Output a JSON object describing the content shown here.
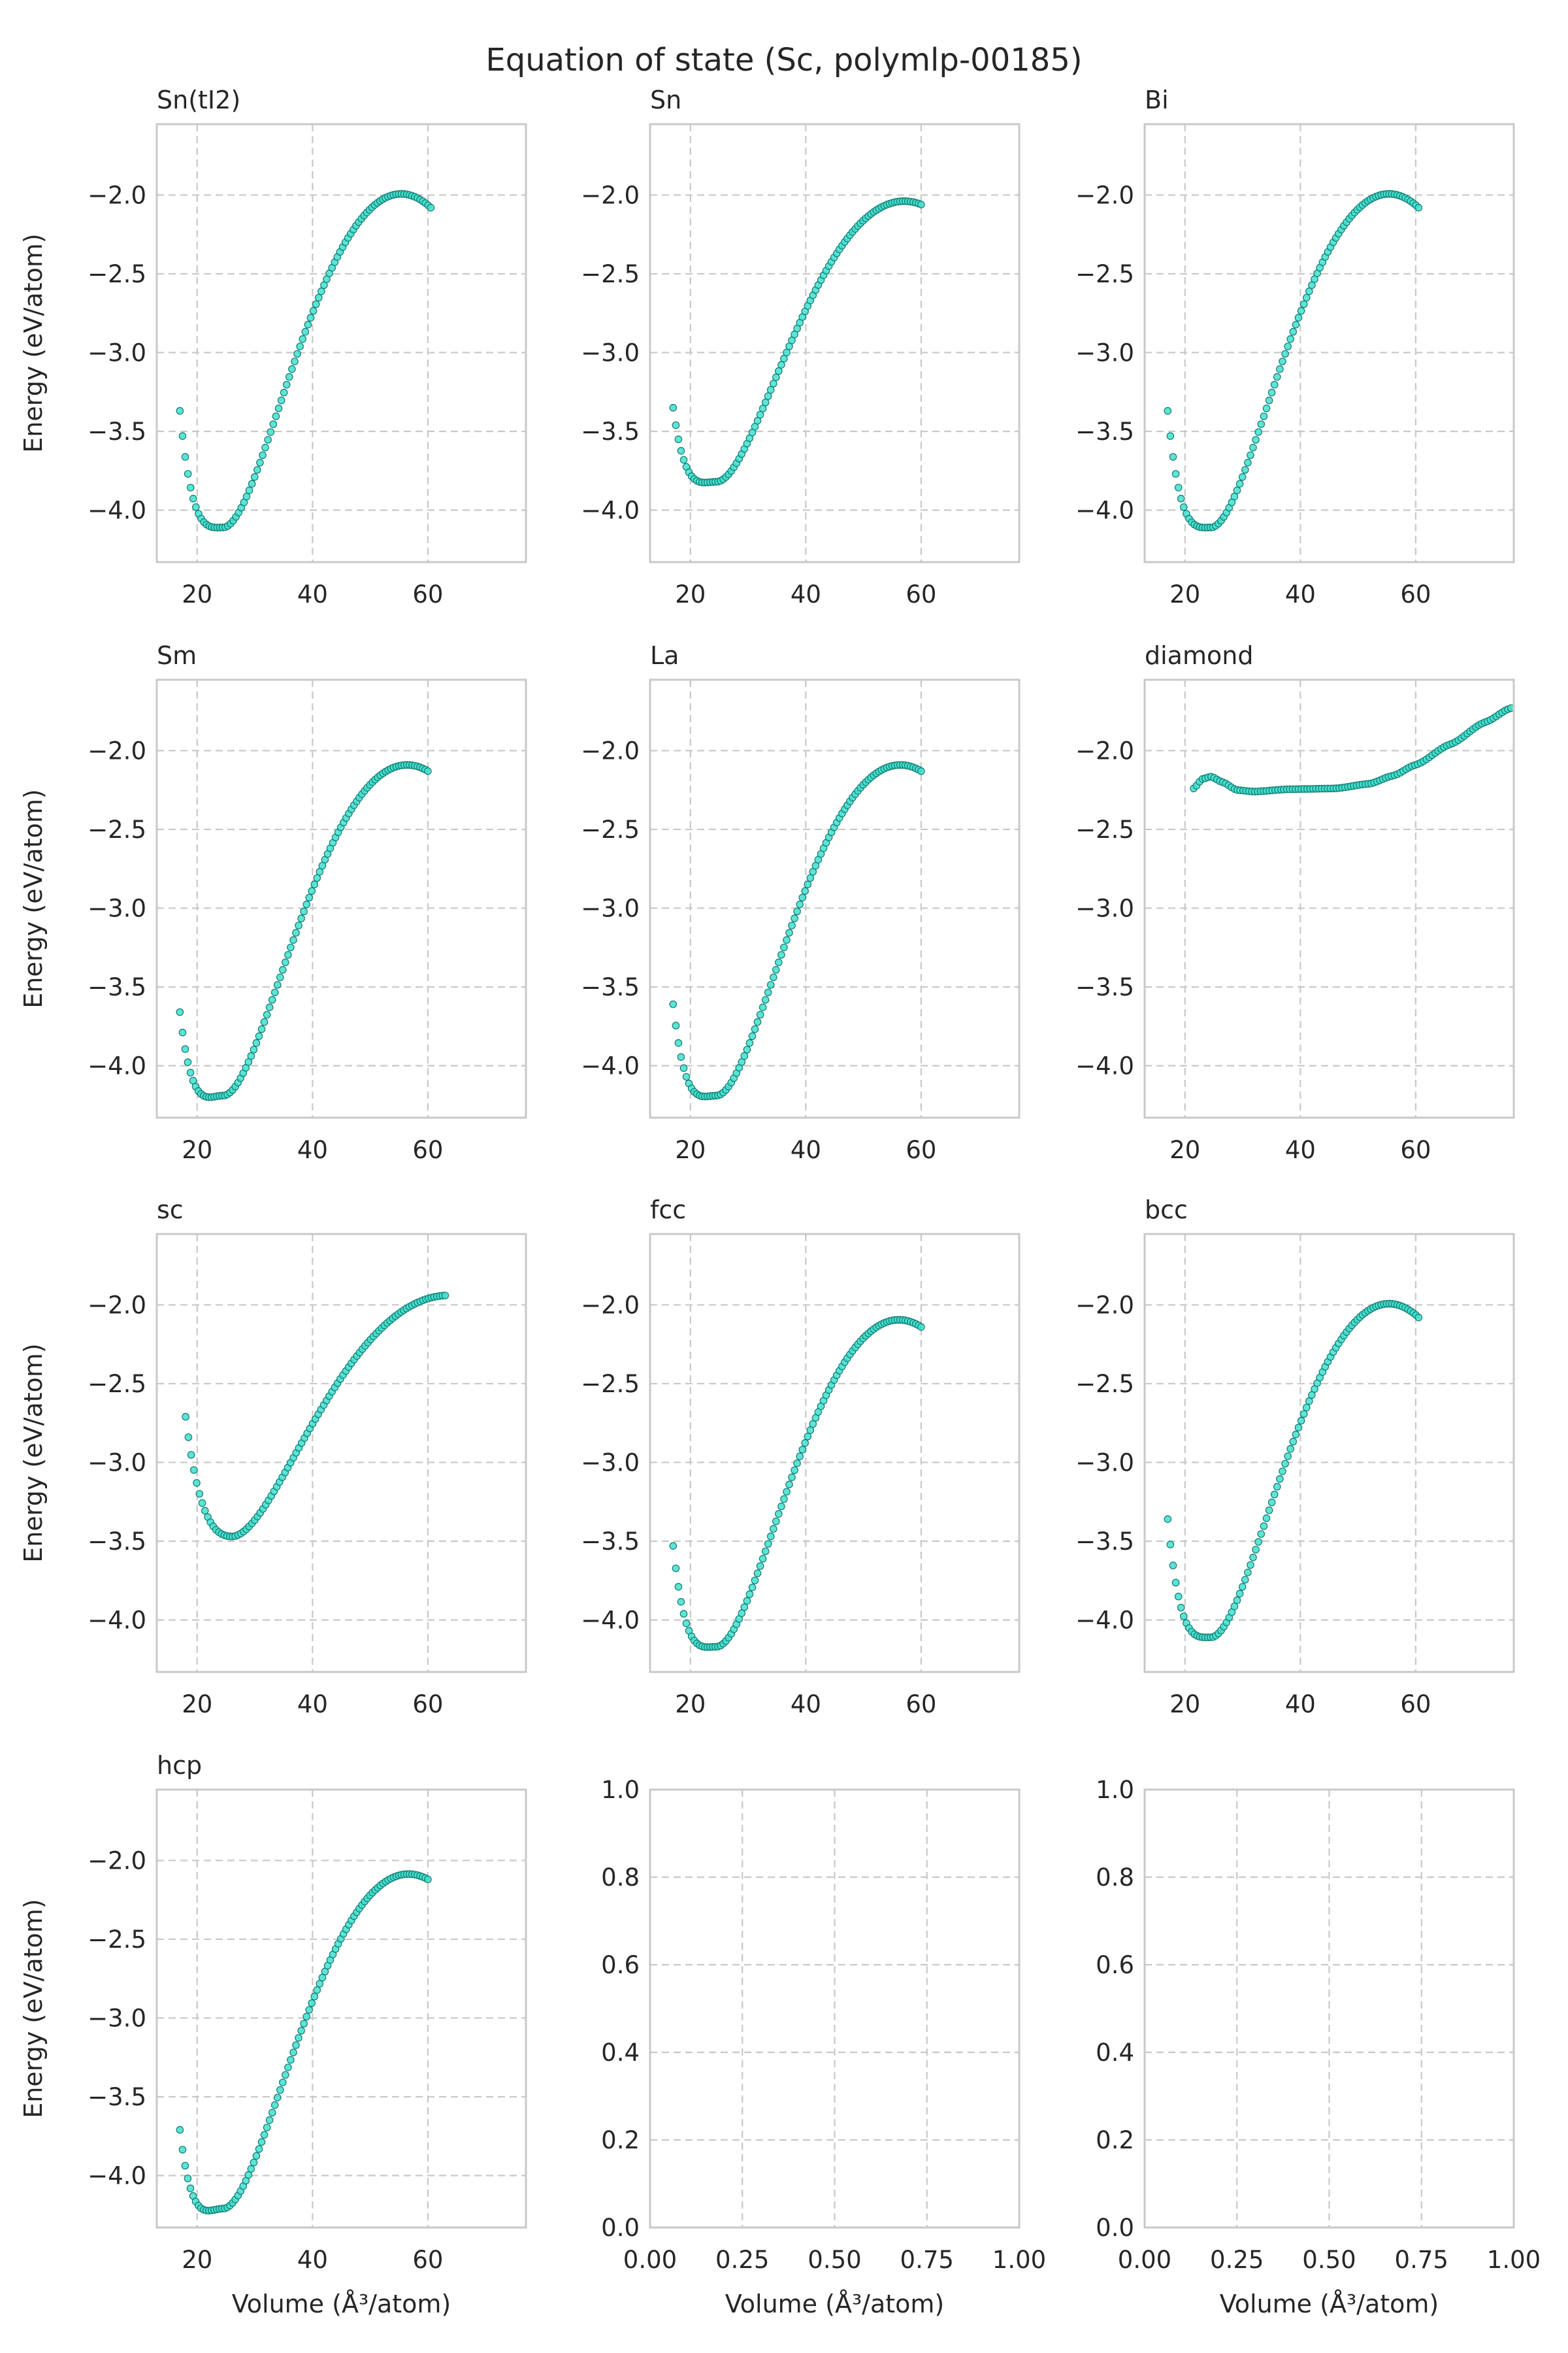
{
  "title": "Equation of state (Sc, polymlp-00185)",
  "colors": {
    "marker_fill": "#40e0d0",
    "marker_edge": "#127a6e",
    "grid": "#c8c8c8",
    "text": "#262626"
  },
  "chart_data": [
    {
      "type": "scatter",
      "title": "Sn(tI2)",
      "xlabel": "",
      "ylabel": "Energy (eV/atom)",
      "xlim": [
        13,
        77
      ],
      "ylim": [
        -4.33,
        -1.55
      ],
      "xticks": [
        "20",
        "40",
        "60"
      ],
      "yticks": [
        "−2.0",
        "−2.5",
        "−3.0",
        "−3.5",
        "−4.0"
      ],
      "grid": true,
      "curve": {
        "v_start": 17,
        "v_end": 60.5,
        "e0": -4.11,
        "v0": 24.5,
        "b": 0.9,
        "b1": 4.0,
        "n": 95
      },
      "first_point": [
        17.0,
        -3.37
      ],
      "min_point": [
        24.5,
        -4.11
      ],
      "last_point": [
        60.5,
        -2.08
      ]
    },
    {
      "type": "scatter",
      "title": "Sn",
      "xlabel": "",
      "ylabel": "",
      "xlim": [
        13,
        77
      ],
      "ylim": [
        -4.33,
        -1.55
      ],
      "xticks": [
        "20",
        "40",
        "60"
      ],
      "yticks": [
        "−2.0",
        "−2.5",
        "−3.0",
        "−3.5",
        "−4.0"
      ],
      "grid": true,
      "curve": {
        "v_start": 17,
        "v_end": 60,
        "e0": -3.82,
        "v0": 24.5,
        "b": 0.7,
        "b1": 4.0,
        "n": 95
      },
      "first_point": [
        17.0,
        -3.35
      ],
      "min_point": [
        24.5,
        -3.82
      ],
      "last_point": [
        60.0,
        -2.06
      ]
    },
    {
      "type": "scatter",
      "title": "Bi",
      "xlabel": "",
      "ylabel": "",
      "xlim": [
        13,
        77
      ],
      "ylim": [
        -4.33,
        -1.55
      ],
      "xticks": [
        "20",
        "40",
        "60"
      ],
      "yticks": [
        "−2.0",
        "−2.5",
        "−3.0",
        "−3.5",
        "−4.0"
      ],
      "grid": true,
      "curve": {
        "v_start": 17,
        "v_end": 60.5,
        "e0": -4.11,
        "v0": 24.5,
        "b": 0.9,
        "b1": 4.0,
        "n": 95
      },
      "first_point": [
        17.0,
        -3.37
      ],
      "min_point": [
        24.5,
        -4.11
      ],
      "last_point": [
        60.5,
        -2.08
      ]
    },
    {
      "type": "scatter",
      "title": "Sm",
      "xlabel": "",
      "ylabel": "Energy (eV/atom)",
      "xlim": [
        13,
        77
      ],
      "ylim": [
        -4.33,
        -1.55
      ],
      "xticks": [
        "20",
        "40",
        "60"
      ],
      "yticks": [
        "−2.0",
        "−2.5",
        "−3.0",
        "−3.5",
        "−4.0"
      ],
      "grid": true,
      "curve": {
        "v_start": 17,
        "v_end": 60,
        "e0": -4.19,
        "v0": 24.5,
        "b": 0.85,
        "b1": 4.0,
        "n": 95
      },
      "first_point": [
        17.0,
        -3.66
      ],
      "min_point": [
        24.5,
        -4.19
      ],
      "last_point": [
        60.0,
        -2.13
      ]
    },
    {
      "type": "scatter",
      "title": "La",
      "xlabel": "",
      "ylabel": "",
      "xlim": [
        13,
        77
      ],
      "ylim": [
        -4.33,
        -1.55
      ],
      "xticks": [
        "20",
        "40",
        "60"
      ],
      "yticks": [
        "−2.0",
        "−2.5",
        "−3.0",
        "−3.5",
        "−4.0"
      ],
      "grid": true,
      "curve": {
        "v_start": 17,
        "v_end": 60,
        "e0": -4.19,
        "v0": 24.5,
        "b": 0.85,
        "b1": 4.0,
        "n": 95
      },
      "first_point": [
        17.0,
        -3.61
      ],
      "min_point": [
        24.5,
        -4.19
      ],
      "last_point": [
        60.0,
        -2.13
      ]
    },
    {
      "type": "scatter",
      "title": "diamond",
      "xlabel": "",
      "ylabel": "",
      "xlim": [
        13,
        77
      ],
      "ylim": [
        -4.33,
        -1.55
      ],
      "xticks": [
        "20",
        "40",
        "60"
      ],
      "yticks": [
        "−2.0",
        "−2.5",
        "−3.0",
        "−3.5",
        "−4.0"
      ],
      "grid": true,
      "knots": [
        [
          21.5,
          -2.24
        ],
        [
          23.0,
          -2.18
        ],
        [
          24.5,
          -2.165
        ],
        [
          26.5,
          -2.2
        ],
        [
          29.0,
          -2.25
        ],
        [
          32.0,
          -2.26
        ],
        [
          38.0,
          -2.245
        ],
        [
          46.0,
          -2.24
        ],
        [
          52.0,
          -2.21
        ],
        [
          56.0,
          -2.16
        ],
        [
          60.0,
          -2.09
        ],
        [
          66.0,
          -1.96
        ],
        [
          72.0,
          -1.82
        ],
        [
          76.5,
          -1.73
        ]
      ],
      "n": 110
    },
    {
      "type": "scatter",
      "title": "sc",
      "xlabel": "",
      "ylabel": "Energy (eV/atom)",
      "xlim": [
        13,
        77
      ],
      "ylim": [
        -4.33,
        -1.55
      ],
      "xticks": [
        "20",
        "40",
        "60"
      ],
      "yticks": [
        "−2.0",
        "−2.5",
        "−3.0",
        "−3.5",
        "−4.0"
      ],
      "grid": true,
      "curve": {
        "v_start": 18,
        "v_end": 63,
        "e0": -3.47,
        "v0": 26.0,
        "b": 0.5,
        "b1": 4.0,
        "n": 95
      },
      "first_point": [
        18.0,
        -2.71
      ],
      "min_point": [
        26.0,
        -3.47
      ],
      "last_point": [
        63.0,
        -1.94
      ]
    },
    {
      "type": "scatter",
      "title": "fcc",
      "xlabel": "",
      "ylabel": "",
      "xlim": [
        13,
        77
      ],
      "ylim": [
        -4.33,
        -1.55
      ],
      "xticks": [
        "20",
        "40",
        "60"
      ],
      "yticks": [
        "−2.0",
        "−2.5",
        "−3.0",
        "−3.5",
        "−4.0"
      ],
      "grid": true,
      "curve": {
        "v_start": 17,
        "v_end": 60,
        "e0": -4.17,
        "v0": 24.5,
        "b": 0.85,
        "b1": 4.0,
        "n": 95
      },
      "first_point": [
        17.0,
        -3.53
      ],
      "min_point": [
        24.5,
        -4.17
      ],
      "last_point": [
        60.0,
        -2.14
      ]
    },
    {
      "type": "scatter",
      "title": "bcc",
      "xlabel": "",
      "ylabel": "",
      "xlim": [
        13,
        77
      ],
      "ylim": [
        -4.33,
        -1.55
      ],
      "xticks": [
        "20",
        "40",
        "60"
      ],
      "yticks": [
        "−2.0",
        "−2.5",
        "−3.0",
        "−3.5",
        "−4.0"
      ],
      "grid": true,
      "curve": {
        "v_start": 17,
        "v_end": 60.5,
        "e0": -4.11,
        "v0": 24.5,
        "b": 0.9,
        "b1": 4.0,
        "n": 95
      },
      "first_point": [
        17.0,
        -3.36
      ],
      "min_point": [
        24.5,
        -4.11
      ],
      "last_point": [
        60.5,
        -2.08
      ]
    },
    {
      "type": "scatter",
      "title": "hcp",
      "xlabel": "Volume (Å³/atom)",
      "ylabel": "Energy (eV/atom)",
      "xlim": [
        13,
        77
      ],
      "ylim": [
        -4.33,
        -1.55
      ],
      "xticks": [
        "20",
        "40",
        "60"
      ],
      "yticks": [
        "−2.0",
        "−2.5",
        "−3.0",
        "−3.5",
        "−4.0"
      ],
      "grid": true,
      "curve": {
        "v_start": 17,
        "v_end": 60,
        "e0": -4.21,
        "v0": 24.5,
        "b": 0.85,
        "b1": 4.0,
        "n": 95
      },
      "first_point": [
        17.0,
        -3.71
      ],
      "min_point": [
        24.5,
        -4.21
      ],
      "last_point": [
        60.0,
        -2.12
      ]
    },
    {
      "type": "scatter",
      "title": "",
      "xlabel": "Volume (Å³/atom)",
      "ylabel": "",
      "empty": true,
      "xlim": [
        0,
        1
      ],
      "ylim": [
        0,
        1
      ],
      "xticks": [
        "0.00",
        "0.25",
        "0.50",
        "0.75",
        "1.00"
      ],
      "yticks": [
        "0.0",
        "0.2",
        "0.4",
        "0.6",
        "0.8",
        "1.0"
      ],
      "grid": true
    },
    {
      "type": "scatter",
      "title": "",
      "xlabel": "Volume (Å³/atom)",
      "ylabel": "",
      "empty": true,
      "xlim": [
        0,
        1
      ],
      "ylim": [
        0,
        1
      ],
      "xticks": [
        "0.00",
        "0.25",
        "0.50",
        "0.75",
        "1.00"
      ],
      "yticks": [
        "0.0",
        "0.2",
        "0.4",
        "0.6",
        "0.8",
        "1.0"
      ],
      "grid": true
    }
  ]
}
